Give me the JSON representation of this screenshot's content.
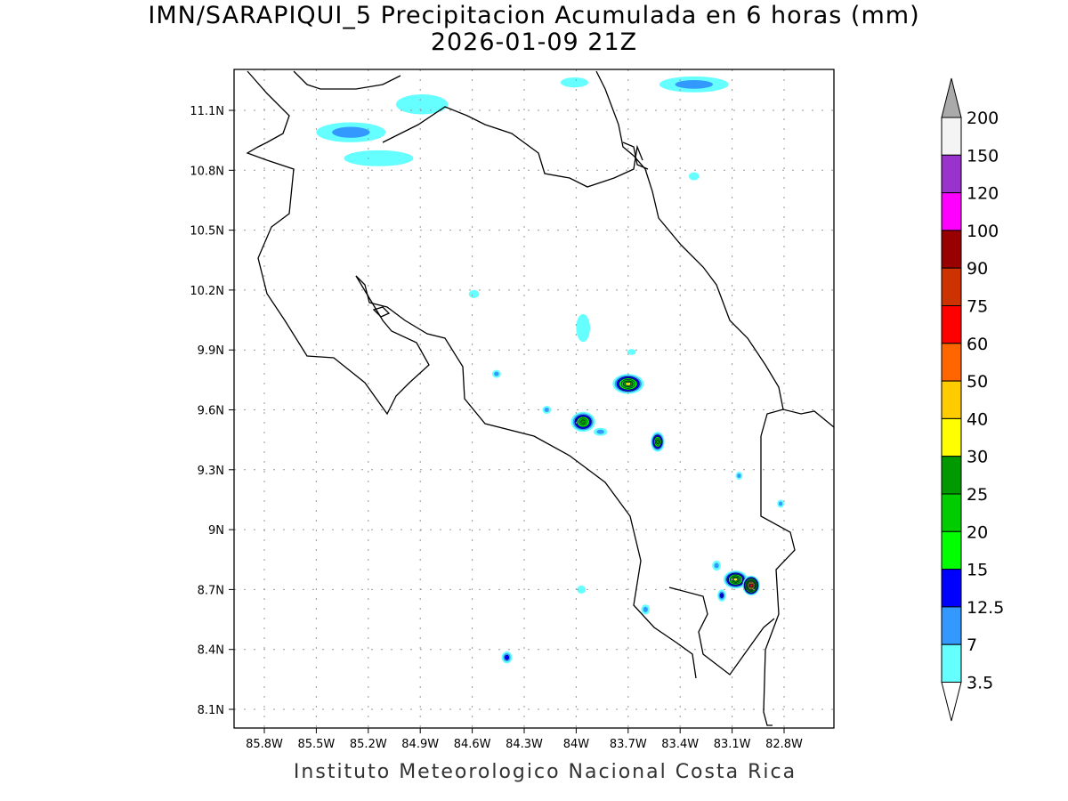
{
  "title_line1": "IMN/SARAPIQUI_5 Precipitacion Acumulada en 6 horas (mm)",
  "title_line2": "2026-01-09 21Z",
  "footer": "Instituto Meteorologico Nacional Costa Rica",
  "x_ticks": [
    "85.8W",
    "85.5W",
    "85.2W",
    "84.9W",
    "84.6W",
    "84.3W",
    "84W",
    "83.7W",
    "83.4W",
    "83.1W",
    "82.8W"
  ],
  "y_ticks": [
    "11.1N",
    "10.8N",
    "10.5N",
    "10.2N",
    "9.9N",
    "9.6N",
    "9.3N",
    "9N",
    "8.7N",
    "8.4N",
    "8.1N"
  ],
  "legend": {
    "labels": [
      "3.5",
      "7",
      "12.5",
      "15",
      "20",
      "25",
      "30",
      "40",
      "50",
      "60",
      "75",
      "90",
      "100",
      "120",
      "150",
      "200"
    ],
    "colors": [
      "#66ffff",
      "#3399ff",
      "#0000ff",
      "#00ff00",
      "#00cc00",
      "#009900",
      "#ffff00",
      "#ffcc00",
      "#ff6600",
      "#ff0000",
      "#cc3300",
      "#990000",
      "#ff00ff",
      "#9933cc",
      "#f4f4f4"
    ],
    "over_color": "#aaaaaa"
  },
  "precip_cells": [
    {
      "lon": -85.3,
      "lat": 10.99,
      "level": 1,
      "w": 0.2,
      "h": 0.05
    },
    {
      "lon": -85.14,
      "lat": 10.86,
      "level": 0,
      "w": 0.2,
      "h": 0.04
    },
    {
      "lon": -84.89,
      "lat": 11.13,
      "level": 0,
      "w": 0.15,
      "h": 0.05
    },
    {
      "lon": -84.01,
      "lat": 11.24,
      "level": 0,
      "w": 0.08,
      "h": 0.025
    },
    {
      "lon": -83.32,
      "lat": 11.23,
      "level": 1,
      "w": 0.2,
      "h": 0.04
    },
    {
      "lon": -83.96,
      "lat": 10.01,
      "level": 0,
      "w": 0.04,
      "h": 0.07
    },
    {
      "lon": -84.59,
      "lat": 10.18,
      "level": 0,
      "w": 0.03,
      "h": 0.02
    },
    {
      "lon": -83.7,
      "lat": 9.73,
      "level": 6,
      "w": 0.09,
      "h": 0.05
    },
    {
      "lon": -83.96,
      "lat": 9.54,
      "level": 5,
      "w": 0.07,
      "h": 0.05
    },
    {
      "lon": -83.53,
      "lat": 9.44,
      "level": 5,
      "w": 0.04,
      "h": 0.05
    },
    {
      "lon": -84.17,
      "lat": 9.6,
      "level": 1,
      "w": 0.025,
      "h": 0.02
    },
    {
      "lon": -83.86,
      "lat": 9.49,
      "level": 1,
      "w": 0.04,
      "h": 0.02
    },
    {
      "lon": -84.46,
      "lat": 9.78,
      "level": 1,
      "w": 0.025,
      "h": 0.02
    },
    {
      "lon": -83.08,
      "lat": 8.75,
      "level": 6,
      "w": 0.07,
      "h": 0.045
    },
    {
      "lon": -82.99,
      "lat": 8.72,
      "level": 9,
      "w": 0.05,
      "h": 0.05
    },
    {
      "lon": -83.16,
      "lat": 8.67,
      "level": 2,
      "w": 0.025,
      "h": 0.03
    },
    {
      "lon": -83.19,
      "lat": 8.82,
      "level": 1,
      "w": 0.025,
      "h": 0.025
    },
    {
      "lon": -84.4,
      "lat": 8.36,
      "level": 2,
      "w": 0.03,
      "h": 0.03
    },
    {
      "lon": -83.6,
      "lat": 8.6,
      "level": 1,
      "w": 0.025,
      "h": 0.025
    },
    {
      "lon": -83.97,
      "lat": 8.7,
      "level": 0,
      "w": 0.025,
      "h": 0.02
    },
    {
      "lon": -83.06,
      "lat": 9.27,
      "level": 1,
      "w": 0.02,
      "h": 0.02
    },
    {
      "lon": -82.82,
      "lat": 9.13,
      "level": 1,
      "w": 0.02,
      "h": 0.02
    },
    {
      "lon": -83.32,
      "lat": 10.77,
      "level": 0,
      "w": 0.03,
      "h": 0.02
    },
    {
      "lon": -83.68,
      "lat": 9.89,
      "level": 0,
      "w": 0.025,
      "h": 0.015
    }
  ]
}
